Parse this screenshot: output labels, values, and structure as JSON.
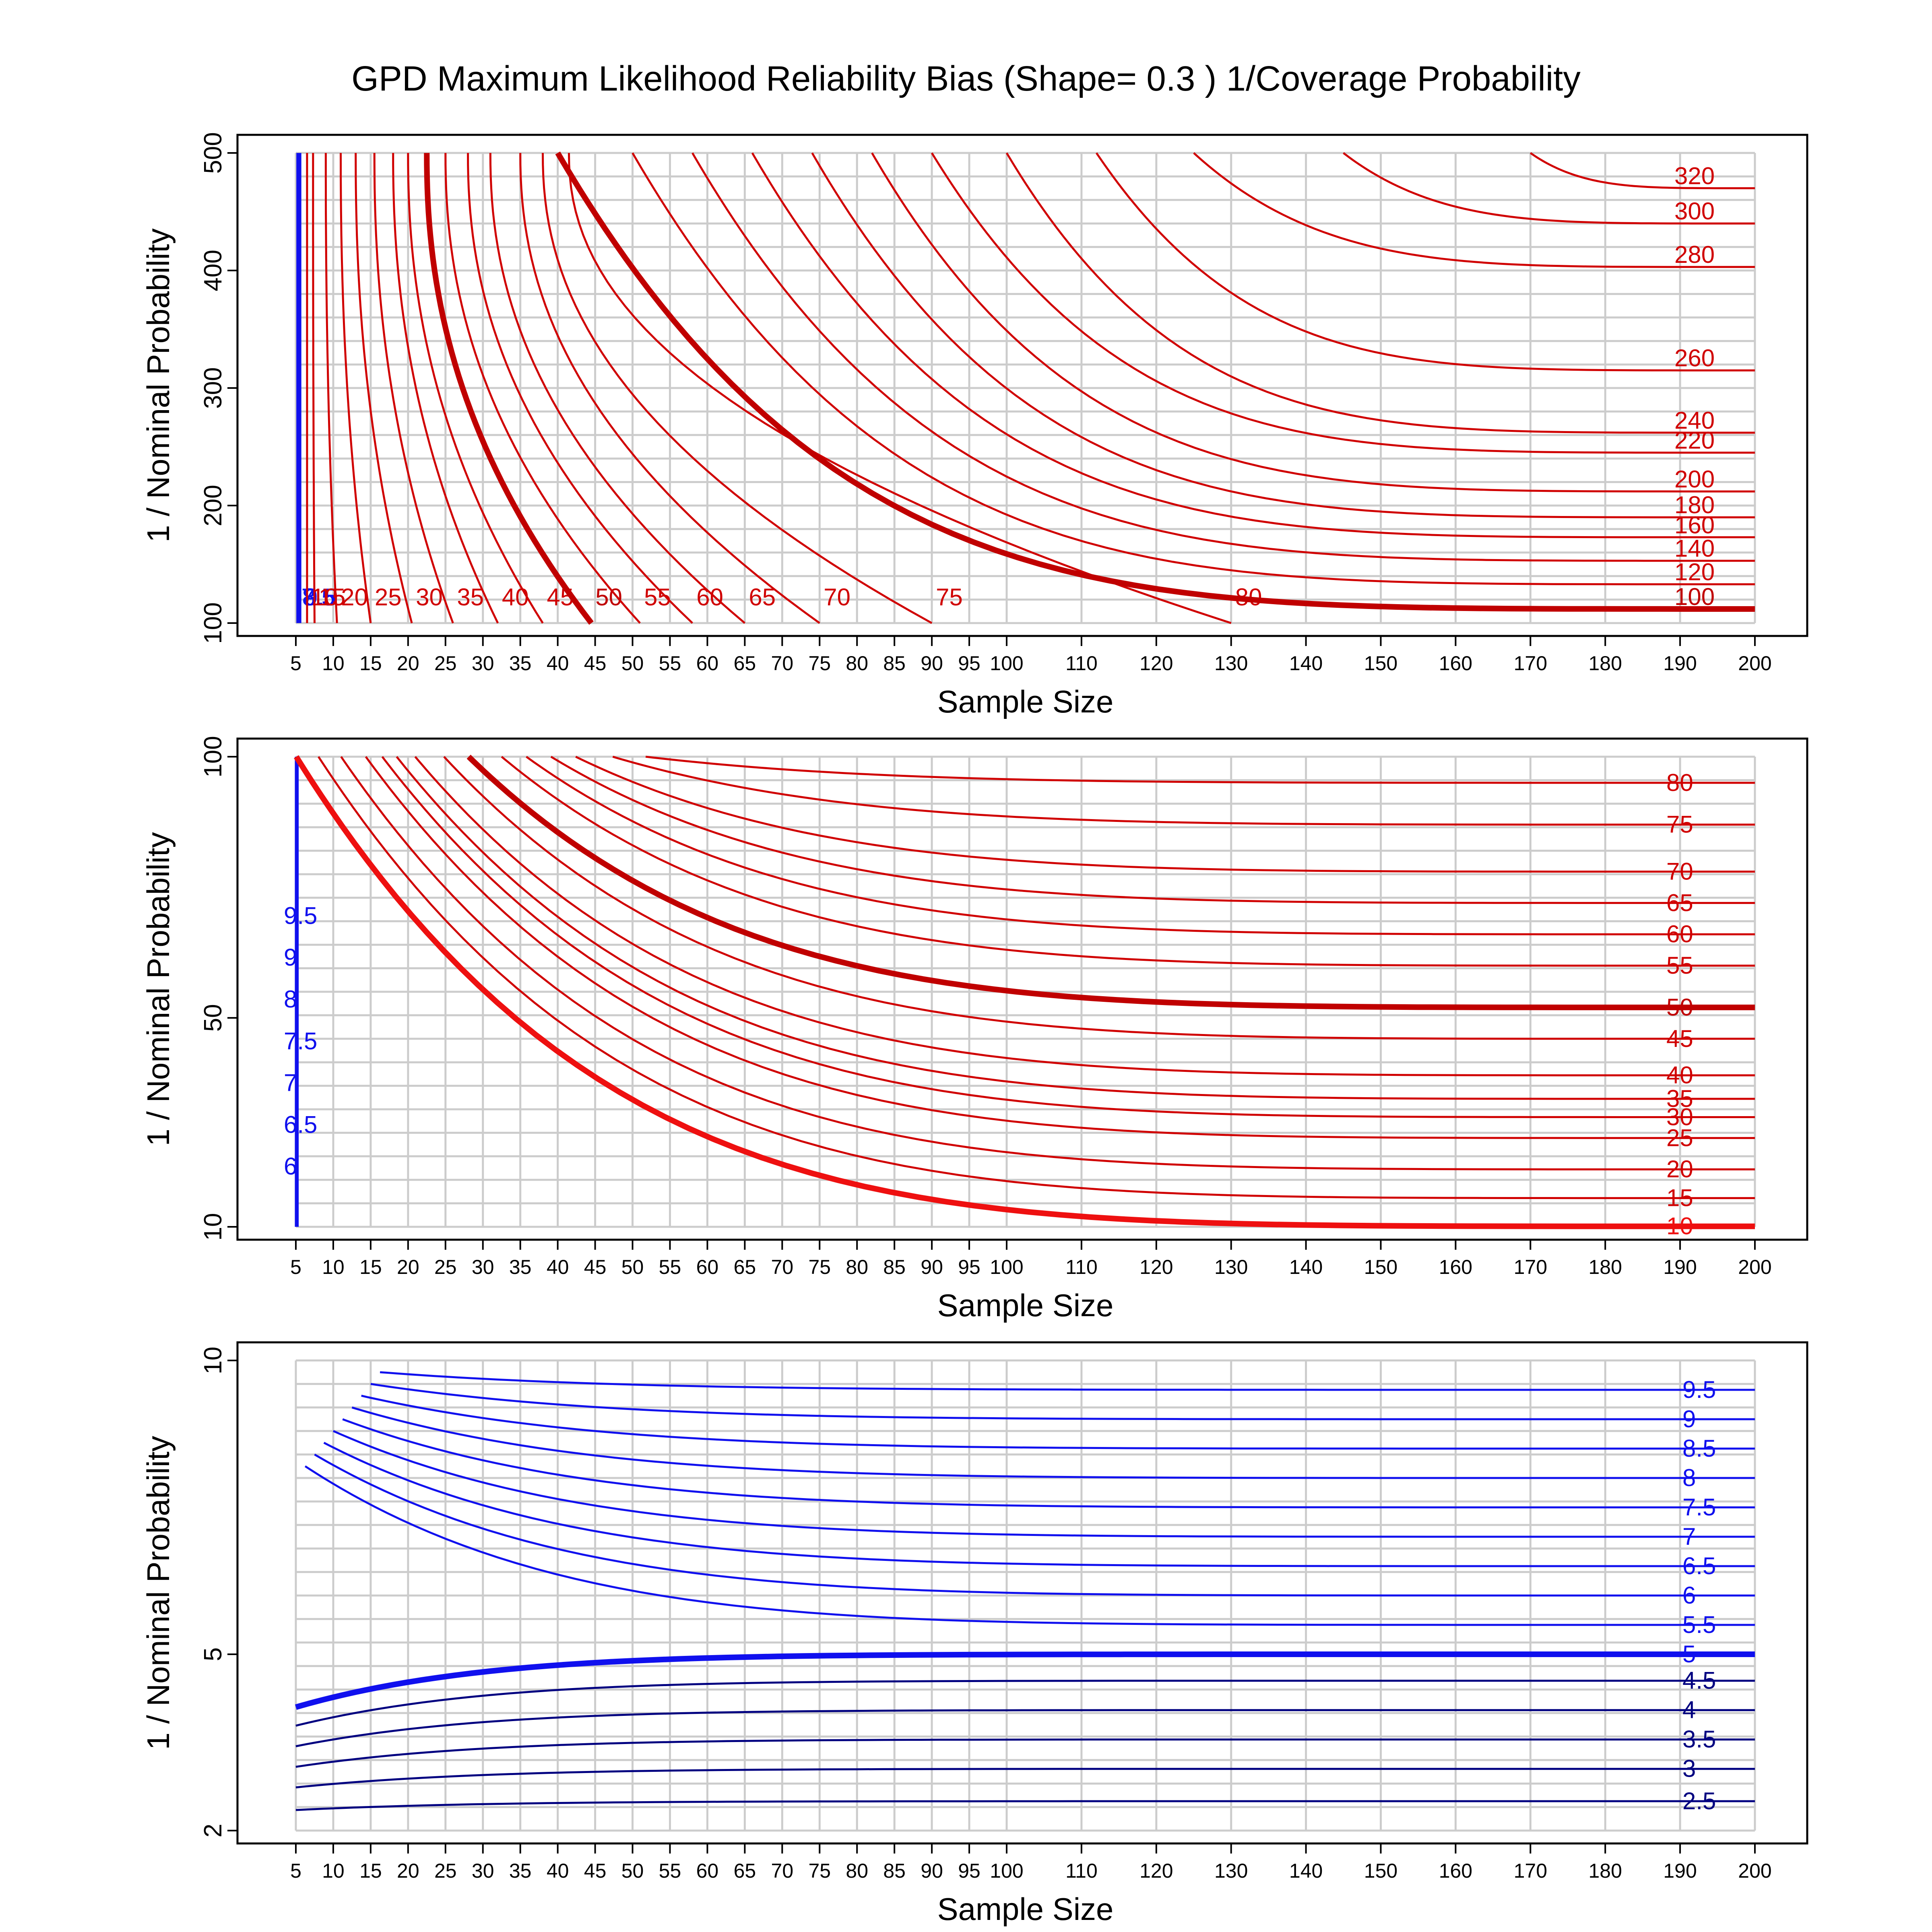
{
  "figure": {
    "title": "GPD Maximum Likelihood Reliability Bias (Shape= 0.3 ) 1/Coverage Probability"
  },
  "chart_data": [
    {
      "type": "contour",
      "xlabel": "Sample Size",
      "ylabel": "1 / Nominal Probability",
      "xlim": [
        5,
        200
      ],
      "ylim": [
        100,
        500
      ],
      "xticks": [
        5,
        10,
        15,
        20,
        25,
        30,
        35,
        40,
        45,
        50,
        55,
        60,
        65,
        70,
        75,
        80,
        85,
        90,
        95,
        100,
        110,
        120,
        130,
        140,
        150,
        160,
        170,
        180,
        190,
        200
      ],
      "yticks": [
        100,
        200,
        300,
        400,
        500
      ],
      "grid": true,
      "ref_level": 100,
      "colors": {
        "red_strong": "#d00000",
        "red_ref": "#c00000",
        "blue": "#1010ee",
        "navy": "#000080"
      },
      "levels": [
        {
          "value": 7.5,
          "label": "7.5",
          "color": "#1010ee",
          "x_at_top": 5.2,
          "x_at_bottom": 5.2
        },
        {
          "value": 8,
          "label": "8",
          "color": "#1010ee",
          "x_at_top": 5.3,
          "x_at_bottom": 5.3
        },
        {
          "value": 8.5,
          "label": "8.5",
          "color": "#1010ee",
          "x_at_top": 5.4,
          "x_at_bottom": 5.4
        },
        {
          "value": 9.5,
          "label": "9.5",
          "color": "#1010ee",
          "x_at_top": 5.6,
          "x_at_bottom": 5.6
        },
        {
          "value": 10,
          "label": "10",
          "color": "#d00000",
          "x_at_top": 6.5,
          "x_at_bottom": 6.5
        },
        {
          "value": 15,
          "label": "15",
          "color": "#d00000",
          "x_at_top": 7.3,
          "x_at_bottom": 7.5
        },
        {
          "value": 20,
          "label": "20",
          "color": "#d00000",
          "x_at_top": 9.0,
          "x_at_bottom": 10.5
        },
        {
          "value": 25,
          "label": "25",
          "color": "#d00000",
          "x_at_top": 11.0,
          "x_at_bottom": 15.0
        },
        {
          "value": 30,
          "label": "30",
          "color": "#d00000",
          "x_at_top": 13.0,
          "x_at_bottom": 20.5
        },
        {
          "value": 35,
          "label": "35",
          "color": "#d00000",
          "x_at_top": 15.5,
          "x_at_bottom": 26.0
        },
        {
          "value": 40,
          "label": "40",
          "color": "#d00000",
          "x_at_top": 18.0,
          "x_at_bottom": 32.0
        },
        {
          "value": 45,
          "label": "45",
          "color": "#d00000",
          "x_at_top": 20.0,
          "x_at_bottom": 38.0
        },
        {
          "value": 50,
          "label": "50",
          "color": "#c00000",
          "x_at_top": 22.5,
          "x_at_bottom": 44.5,
          "ref": true
        },
        {
          "value": 55,
          "label": "55",
          "color": "#d00000",
          "x_at_top": 25.0,
          "x_at_bottom": 51.0
        },
        {
          "value": 60,
          "label": "60",
          "color": "#d00000",
          "x_at_top": 28.0,
          "x_at_bottom": 58.0
        },
        {
          "value": 65,
          "label": "65",
          "color": "#d00000",
          "x_at_top": 31.0,
          "x_at_bottom": 65.0
        },
        {
          "value": 70,
          "label": "70",
          "color": "#d00000",
          "x_at_top": 35.0,
          "x_at_bottom": 75.0
        },
        {
          "value": 75,
          "label": "75",
          "color": "#d00000",
          "x_at_top": 38.0,
          "x_at_bottom": 90.0
        },
        {
          "value": 80,
          "label": "80",
          "color": "#d00000",
          "x_at_top": 41.5,
          "x_at_bottom": 130.0
        },
        {
          "value": 100,
          "label": "100",
          "color": "#c00000",
          "x_at_top": 40.0,
          "ref": true,
          "y_at_right": 112
        },
        {
          "value": 120,
          "label": "120",
          "color": "#d00000",
          "x_at_top": 50.0,
          "y_at_right": 133
        },
        {
          "value": 140,
          "label": "140",
          "color": "#d00000",
          "x_at_top": 58.0,
          "y_at_right": 153
        },
        {
          "value": 160,
          "label": "160",
          "color": "#d00000",
          "x_at_top": 66.0,
          "y_at_right": 173
        },
        {
          "value": 180,
          "label": "180",
          "color": "#d00000",
          "x_at_top": 74.0,
          "y_at_right": 190
        },
        {
          "value": 200,
          "label": "200",
          "color": "#d00000",
          "x_at_top": 82.0,
          "y_at_right": 212
        },
        {
          "value": 220,
          "label": "220",
          "color": "#d00000",
          "x_at_top": 90.0,
          "y_at_right": 245
        },
        {
          "value": 240,
          "label": "240",
          "color": "#d00000",
          "x_at_top": 100.0,
          "y_at_right": 262
        },
        {
          "value": 260,
          "label": "260",
          "color": "#d00000",
          "x_at_top": 112.0,
          "y_at_right": 315
        },
        {
          "value": 280,
          "label": "280",
          "color": "#d00000",
          "x_at_top": 125.0,
          "y_at_right": 403
        },
        {
          "value": 300,
          "label": "300",
          "color": "#d00000",
          "x_at_top": 145.0,
          "y_at_right": 440
        },
        {
          "value": 320,
          "label": "320",
          "color": "#d00000",
          "x_at_top": 170.0,
          "y_at_right": 470
        }
      ]
    },
    {
      "type": "contour",
      "xlabel": "Sample Size",
      "ylabel": "1 / Nominal Probability",
      "xlim": [
        5,
        200
      ],
      "ylim": [
        10,
        100
      ],
      "xticks": [
        5,
        10,
        15,
        20,
        25,
        30,
        35,
        40,
        45,
        50,
        55,
        60,
        65,
        70,
        75,
        80,
        85,
        90,
        95,
        100,
        110,
        120,
        130,
        140,
        150,
        160,
        170,
        180,
        190,
        200
      ],
      "yticks": [
        10,
        50,
        100
      ],
      "grid": true,
      "ref_level": 50,
      "levels": [
        {
          "value": 6,
          "label": "6",
          "color": "#1010ee"
        },
        {
          "value": 6.5,
          "label": "6.5",
          "color": "#1010ee"
        },
        {
          "value": 7,
          "label": "7",
          "color": "#1010ee"
        },
        {
          "value": 7.5,
          "label": "7.5",
          "color": "#1010ee"
        },
        {
          "value": 8,
          "label": "8",
          "color": "#1010ee"
        },
        {
          "value": 9,
          "label": "9",
          "color": "#1010ee"
        },
        {
          "value": 9.5,
          "label": "9.5",
          "color": "#1010ee"
        },
        {
          "value": 10,
          "label": "10",
          "color": "#ee1010",
          "ref": true,
          "y_at_right": 10.1
        },
        {
          "value": 15,
          "label": "15",
          "color": "#d00000",
          "y_at_right": 15.5
        },
        {
          "value": 20,
          "label": "20",
          "color": "#d00000",
          "y_at_right": 21.0
        },
        {
          "value": 25,
          "label": "25",
          "color": "#d00000",
          "y_at_right": 27.0
        },
        {
          "value": 30,
          "label": "30",
          "color": "#d00000",
          "y_at_right": 31.0
        },
        {
          "value": 35,
          "label": "35",
          "color": "#d00000",
          "y_at_right": 34.5
        },
        {
          "value": 40,
          "label": "40",
          "color": "#d00000",
          "y_at_right": 39.0
        },
        {
          "value": 45,
          "label": "45",
          "color": "#d00000",
          "y_at_right": 46.0
        },
        {
          "value": 50,
          "label": "50",
          "color": "#c00000",
          "ref": true,
          "y_at_right": 52.0
        },
        {
          "value": 55,
          "label": "55",
          "color": "#d00000",
          "y_at_right": 60.0
        },
        {
          "value": 60,
          "label": "60",
          "color": "#d00000",
          "y_at_right": 66.0
        },
        {
          "value": 65,
          "label": "65",
          "color": "#d00000",
          "y_at_right": 72.0
        },
        {
          "value": 70,
          "label": "70",
          "color": "#d00000",
          "y_at_right": 78.0
        },
        {
          "value": 75,
          "label": "75",
          "color": "#d00000",
          "y_at_right": 87.0
        },
        {
          "value": 80,
          "label": "80",
          "color": "#d00000",
          "y_at_right": 95.0
        }
      ]
    },
    {
      "type": "contour",
      "xlabel": "Sample Size",
      "ylabel": "1 / Nominal Probability",
      "xlim": [
        5,
        200
      ],
      "ylim": [
        2,
        10
      ],
      "xticks": [
        5,
        10,
        15,
        20,
        25,
        30,
        35,
        40,
        45,
        50,
        55,
        60,
        65,
        70,
        75,
        80,
        85,
        90,
        95,
        100,
        110,
        120,
        130,
        140,
        150,
        160,
        170,
        180,
        190,
        200
      ],
      "yticks": [
        2,
        5,
        10
      ],
      "grid": true,
      "ref_level": 5,
      "levels": [
        {
          "value": 2.5,
          "label": "2.5",
          "color": "#000080",
          "y_at_right": 2.5
        },
        {
          "value": 3,
          "label": "3",
          "color": "#000080",
          "y_at_right": 3.05
        },
        {
          "value": 3.5,
          "label": "3.5",
          "color": "#000080",
          "y_at_right": 3.55
        },
        {
          "value": 4,
          "label": "4",
          "color": "#000080",
          "y_at_right": 4.05
        },
        {
          "value": 4.5,
          "label": "4.5",
          "color": "#000080",
          "y_at_right": 4.55
        },
        {
          "value": 5,
          "label": "5",
          "color": "#1010ee",
          "ref": true,
          "y_at_right": 5.0
        },
        {
          "value": 5.5,
          "label": "5.5",
          "color": "#1010ee",
          "y_at_right": 5.5
        },
        {
          "value": 6,
          "label": "6",
          "color": "#1010ee",
          "y_at_right": 6.0
        },
        {
          "value": 6.5,
          "label": "6.5",
          "color": "#1010ee",
          "y_at_right": 6.5
        },
        {
          "value": 7,
          "label": "7",
          "color": "#1010ee",
          "y_at_right": 7.0
        },
        {
          "value": 7.5,
          "label": "7.5",
          "color": "#1010ee",
          "y_at_right": 7.5
        },
        {
          "value": 8,
          "label": "8",
          "color": "#1010ee",
          "y_at_right": 8.0
        },
        {
          "value": 8.5,
          "label": "8.5",
          "color": "#1010ee",
          "y_at_right": 8.5
        },
        {
          "value": 9,
          "label": "9",
          "color": "#1010ee",
          "y_at_right": 9.0
        },
        {
          "value": 9.5,
          "label": "9.5",
          "color": "#1010ee",
          "y_at_right": 9.5
        }
      ]
    }
  ]
}
